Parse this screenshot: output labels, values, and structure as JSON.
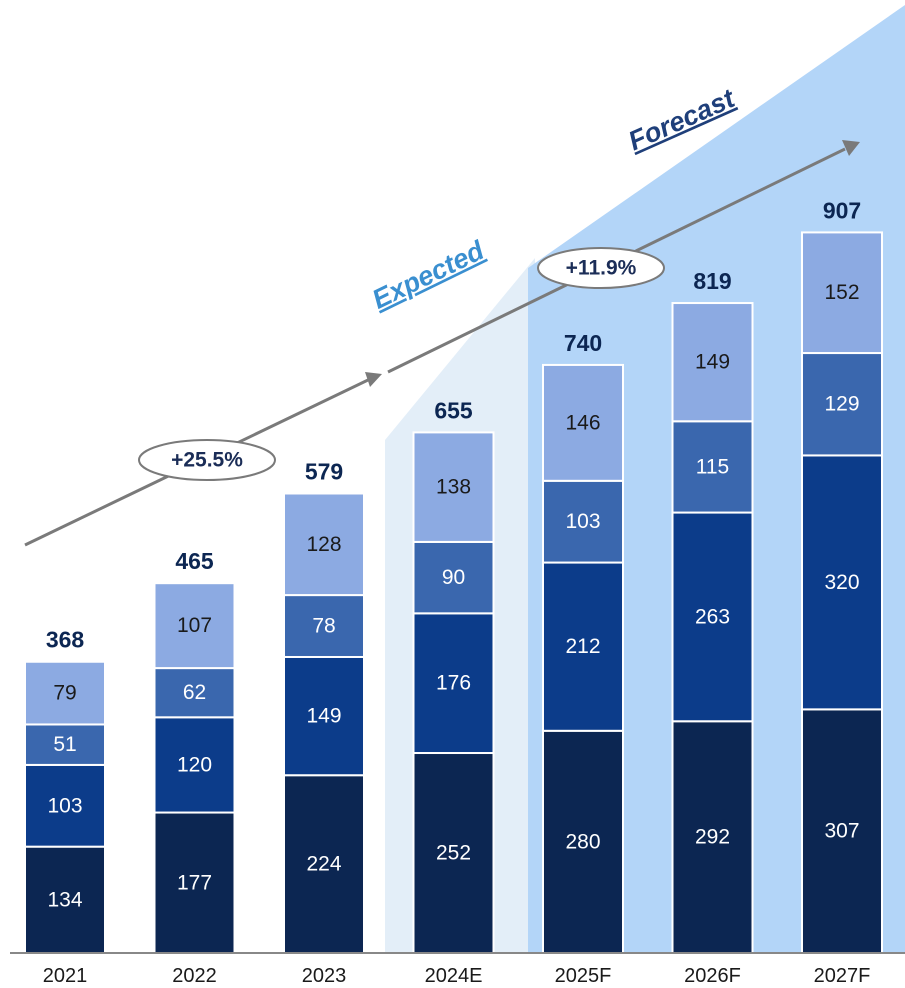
{
  "chart_data": {
    "type": "bar",
    "stacked": true,
    "categories": [
      "2021",
      "2022",
      "2023",
      "2024E",
      "2025F",
      "2026F",
      "2027F"
    ],
    "series": [
      {
        "values": [
          134,
          177,
          224,
          252,
          280,
          292,
          307
        ]
      },
      {
        "values": [
          103,
          120,
          149,
          176,
          212,
          263,
          320
        ]
      },
      {
        "values": [
          51,
          62,
          78,
          90,
          103,
          115,
          129
        ]
      },
      {
        "values": [
          79,
          107,
          128,
          138,
          146,
          149,
          152
        ]
      }
    ],
    "totals": [
      368,
      465,
      579,
      655,
      740,
      819,
      907
    ],
    "ylim": [
      0,
      1000
    ],
    "grid": false,
    "legend": "none",
    "annotations": {
      "cagr_1": "+25.5%",
      "cagr_2": "+11.9%",
      "phase_expected": "Expected",
      "phase_forecast": "Forecast"
    }
  },
  "colors": {
    "series": [
      "#0c2652",
      "#0c3c8a",
      "#3a67ae",
      "#8caae2"
    ],
    "segment_text": [
      "#ffffff",
      "#ffffff",
      "#ffffff",
      "#1a1a1a"
    ],
    "total_text": "#0c2652",
    "expected_bg": "#e3eef8",
    "forecast_bg": "#b3d5f8",
    "arrow": "#7a7a7a",
    "expected_text": "#3a8fd0",
    "forecast_text": "#1f3f7a",
    "axis": "#888888"
  }
}
